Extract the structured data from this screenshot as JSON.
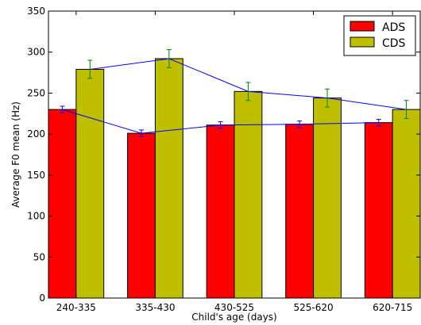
{
  "chart_data": {
    "type": "bar",
    "xlabel": "Child's age (days)",
    "ylabel": "Average F0 mean (Hz)",
    "categories": [
      "240-335",
      "335-430",
      "430-525",
      "525-620",
      "620-715"
    ],
    "ylim": [
      0,
      350
    ],
    "yticks": [
      0,
      50,
      100,
      150,
      200,
      250,
      300,
      350
    ],
    "grid": false,
    "legend_position": "top-right",
    "series": [
      {
        "name": "ADS",
        "color": "#ff0000",
        "values": [
          230,
          201,
          211,
          212,
          214
        ],
        "errors": [
          4,
          4,
          4,
          4,
          4
        ],
        "error_color": "#0000ff",
        "connecting_line_color": "#0000ff"
      },
      {
        "name": "CDS",
        "color": "#bfbf00",
        "values": [
          279,
          292,
          252,
          244,
          230
        ],
        "errors": [
          11,
          11,
          11,
          11,
          11
        ],
        "error_color": "#008000",
        "connecting_line_color": "#0000ff"
      }
    ]
  }
}
